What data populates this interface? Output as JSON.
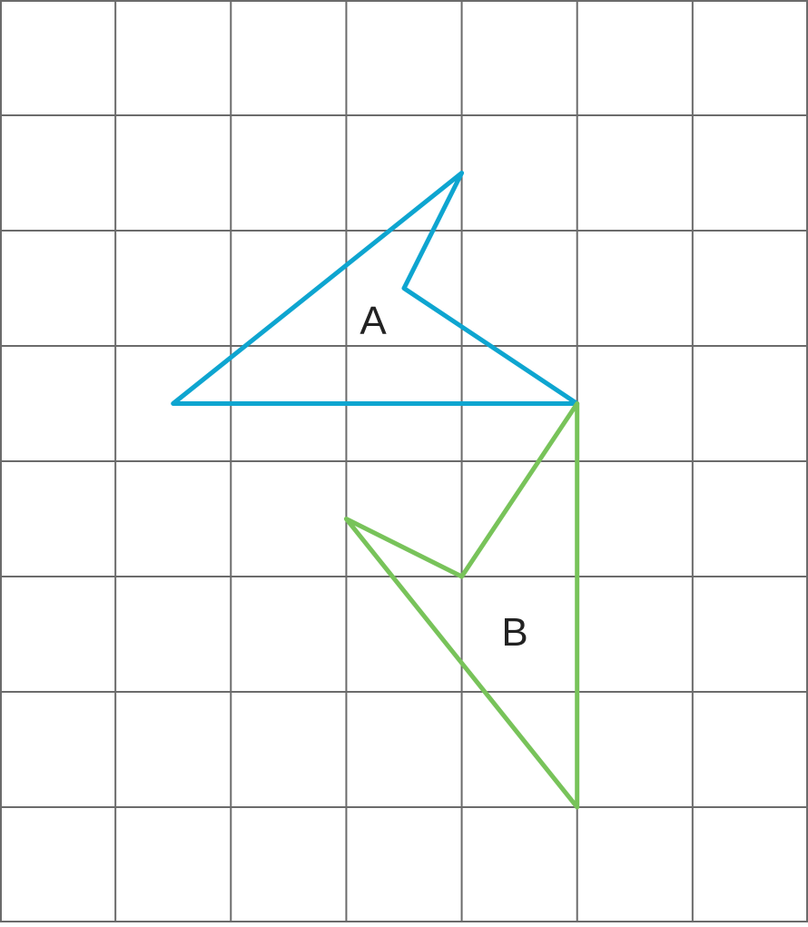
{
  "grid": {
    "columns": 7,
    "rows": 8,
    "line_color": "#6b6b6b",
    "background": "#ffffff"
  },
  "shapes": [
    {
      "id": "A",
      "label": "A",
      "stroke": "#0ea5d0",
      "vertices_grid_units": [
        [
          1.5,
          3.5
        ],
        [
          5.0,
          3.5
        ],
        [
          3.5,
          2.5
        ],
        [
          4.0,
          1.5
        ]
      ]
    },
    {
      "id": "B",
      "label": "B",
      "stroke": "#78c35a",
      "vertices_grid_units": [
        [
          5.0,
          3.5
        ],
        [
          5.0,
          7.0
        ],
        [
          3.0,
          4.5
        ],
        [
          4.0,
          5.0
        ]
      ]
    }
  ]
}
